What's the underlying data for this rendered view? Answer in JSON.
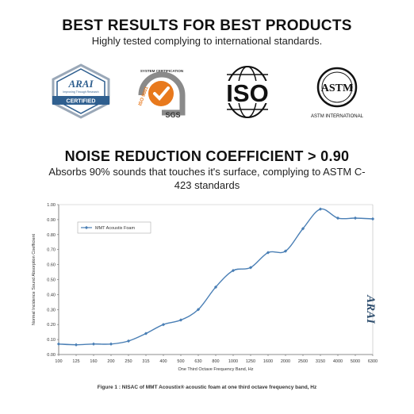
{
  "header": {
    "title": "BEST RESULTS FOR BEST PRODUCTS",
    "subtitle": "Highly tested complying to international standards."
  },
  "logos": {
    "arai": {
      "name": "ARAI",
      "tagline": "Improving Through Research",
      "badge": "CERTIFIED",
      "color": "#2f5f8f"
    },
    "sgs": {
      "arc_text": "SYSTEM CERTIFICATION",
      "side_text": "ISO 9001",
      "name": "SGS",
      "color": "#e8791d"
    },
    "iso": {
      "name": "ISO"
    },
    "astm": {
      "name": "ASTM",
      "caption": "ASTM INTERNATIONAL"
    }
  },
  "section": {
    "title": "NOISE REDUCTION COEFFICIENT > 0.90",
    "subtitle": "Absorbs 90% sounds that touches it's surface, complying to ASTM C-423 standards"
  },
  "watermark": {
    "text": "ARAI"
  },
  "chart_data": {
    "type": "line",
    "title": "",
    "caption": "Figure 1 : NISAC of MMT Acoustix® acoustic foam at one third octave frequency band, Hz",
    "xlabel": "One Third Octave Frequency Band, Hz",
    "ylabel": "Normal Incidence Sound Absorption Coefficient",
    "categories": [
      "100",
      "125",
      "160",
      "200",
      "250",
      "315",
      "400",
      "500",
      "630",
      "800",
      "1000",
      "1250",
      "1600",
      "2000",
      "2500",
      "3150",
      "4000",
      "5000",
      "6300"
    ],
    "ylim": [
      0,
      1.0
    ],
    "yticks": [
      "0.00",
      "0.10",
      "0.20",
      "0.30",
      "0.40",
      "0.50",
      "0.60",
      "0.70",
      "0.80",
      "0.90",
      "1.00"
    ],
    "grid": false,
    "legend_position": "top-left",
    "series": [
      {
        "name": "MMT Acoustix Foam",
        "color": "#4a7fb5",
        "values": [
          0.07,
          0.065,
          0.07,
          0.07,
          0.09,
          0.14,
          0.2,
          0.23,
          0.3,
          0.45,
          0.56,
          0.58,
          0.68,
          0.69,
          0.84,
          0.97,
          0.91,
          0.91,
          0.905
        ]
      }
    ]
  }
}
